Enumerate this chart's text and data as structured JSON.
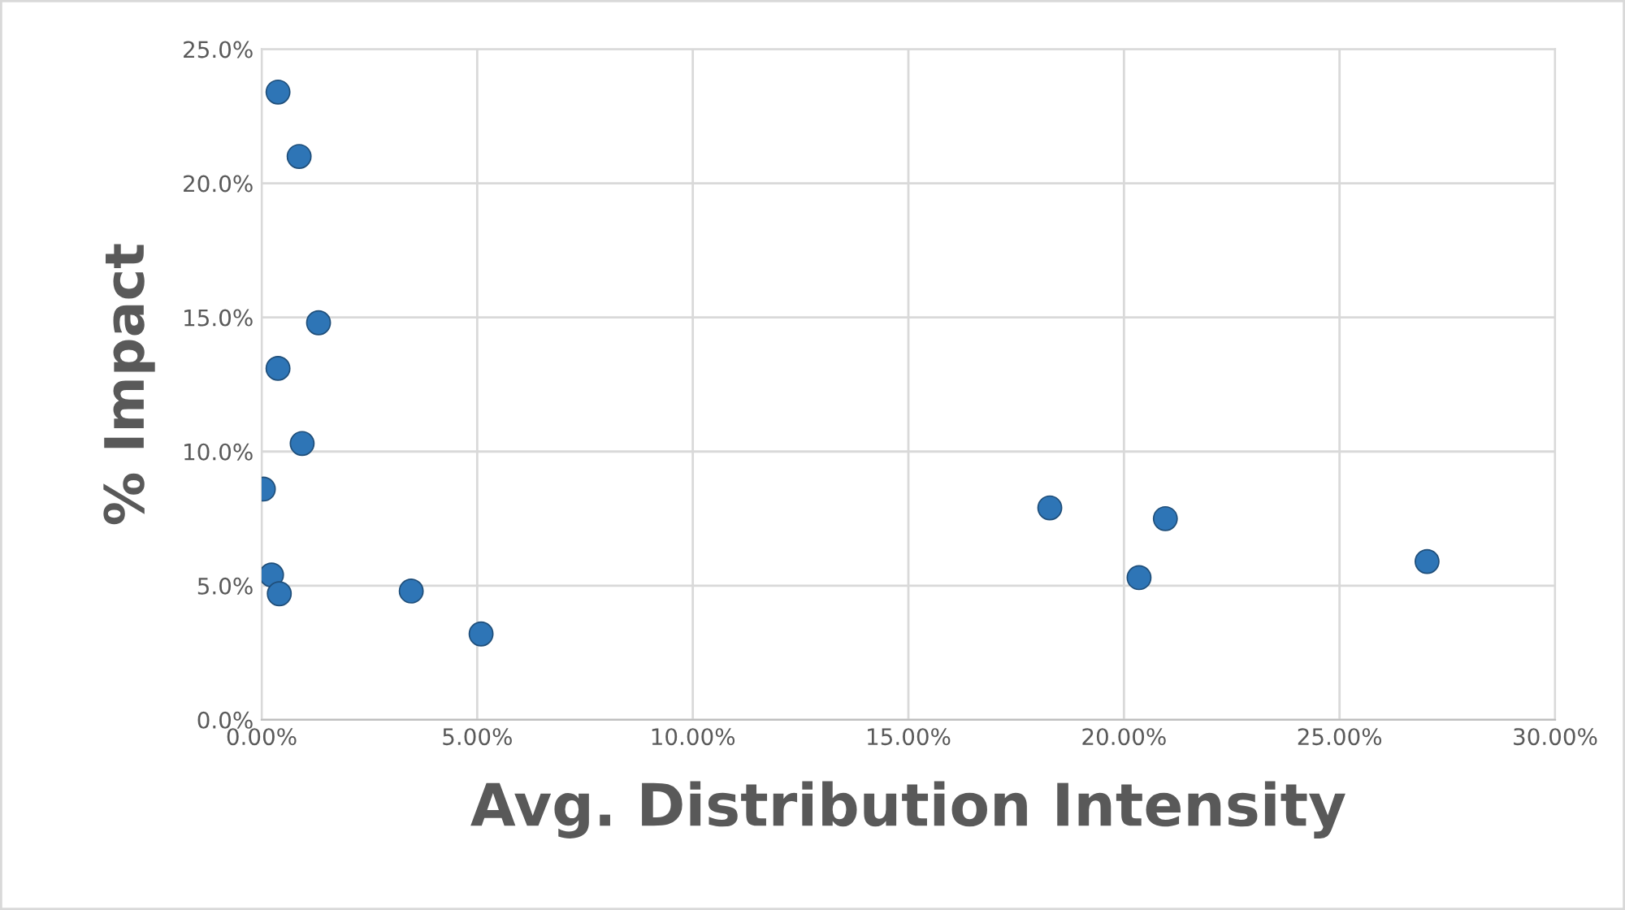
{
  "chart_data": {
    "type": "scatter",
    "xlabel": "Avg. Distribution Intensity",
    "ylabel": "% Impact",
    "x": [
      0.38,
      0.87,
      1.32,
      0.38,
      0.94,
      0.04,
      0.23,
      0.41,
      3.47,
      5.09,
      18.28,
      20.96,
      20.35,
      27.03
    ],
    "series": [
      {
        "color": "#2e75b6",
        "values": [
          23.4,
          21.0,
          14.8,
          13.1,
          10.3,
          8.6,
          5.4,
          4.7,
          4.8,
          3.2,
          7.9,
          7.5,
          5.3,
          5.9
        ]
      }
    ],
    "xlim": [
      0,
      30
    ],
    "ylim": [
      0,
      25
    ],
    "xticks": [
      {
        "value": 0,
        "label": "0.00%"
      },
      {
        "value": 5,
        "label": "5.00%"
      },
      {
        "value": 10,
        "label": "10.00%"
      },
      {
        "value": 15,
        "label": "15.00%"
      },
      {
        "value": 20,
        "label": "20.00%"
      },
      {
        "value": 25,
        "label": "25.00%"
      },
      {
        "value": 30,
        "label": "30.00%"
      }
    ],
    "yticks": [
      {
        "value": 0,
        "label": "0.0%"
      },
      {
        "value": 5,
        "label": "5.0%"
      },
      {
        "value": 10,
        "label": "10.0%"
      },
      {
        "value": 15,
        "label": "15.0%"
      },
      {
        "value": 20,
        "label": "20.0%"
      },
      {
        "value": 25,
        "label": "25.0%"
      }
    ],
    "grid": true,
    "marker": "circle"
  }
}
